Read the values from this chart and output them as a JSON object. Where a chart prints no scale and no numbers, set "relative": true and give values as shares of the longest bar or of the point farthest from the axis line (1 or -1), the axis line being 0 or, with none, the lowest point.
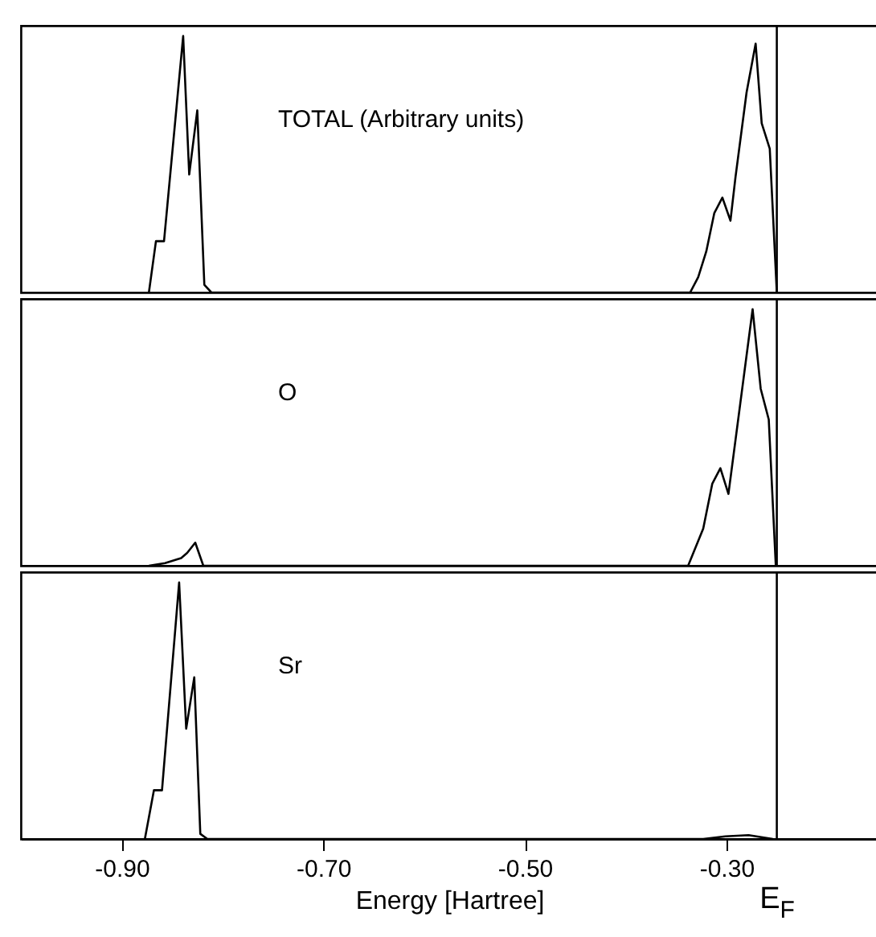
{
  "chart_data": [
    {
      "type": "line",
      "relative": true,
      "annotations": [
        "TOTAL (Arbitrary units)"
      ],
      "tick_labels": false,
      "x": [
        -0.873,
        -0.866,
        -0.858,
        -0.839,
        -0.833,
        -0.825,
        -0.818,
        -0.811,
        -0.336,
        -0.328,
        -0.32,
        -0.312,
        -0.304,
        -0.296,
        -0.291,
        -0.28,
        -0.271,
        -0.265,
        -0.257,
        -0.25
      ],
      "series": [
        {
          "color": "#000000",
          "values": [
            0,
            0.2,
            0.2,
            1.0,
            0.46,
            0.71,
            0.03,
            0,
            0,
            0.06,
            0.16,
            0.31,
            0.37,
            0.28,
            0.45,
            0.78,
            0.97,
            0.66,
            0.56,
            0
          ]
        }
      ],
      "xlim": [
        -1.0,
        -0.15
      ],
      "ref_lines": [
        {
          "axis": "x",
          "value": -0.25,
          "color": "#000000"
        }
      ]
    },
    {
      "type": "line",
      "relative": true,
      "annotations": [
        "O"
      ],
      "tick_labels": false,
      "x": [
        -0.873,
        -0.857,
        -0.841,
        -0.835,
        -0.827,
        -0.819,
        -0.338,
        -0.323,
        -0.314,
        -0.306,
        -0.298,
        -0.274,
        -0.266,
        -0.258,
        -0.251
      ],
      "series": [
        {
          "color": "#000000",
          "values": [
            0,
            0.01,
            0.03,
            0.05,
            0.09,
            0,
            0,
            0.145,
            0.32,
            0.38,
            0.28,
            1.0,
            0.69,
            0.57,
            0
          ]
        }
      ],
      "xlim": [
        -1.0,
        -0.15
      ],
      "ref_lines": [
        {
          "axis": "x",
          "value": -0.25,
          "color": "#000000"
        }
      ]
    },
    {
      "type": "line",
      "relative": true,
      "annotations": [
        "Sr"
      ],
      "tick_labels": "x",
      "xlabel": "Energy [Hartree]",
      "x": [
        -0.877,
        -0.868,
        -0.86,
        -0.843,
        -0.836,
        -0.828,
        -0.822,
        -0.815,
        -0.323,
        -0.301,
        -0.278,
        -0.254
      ],
      "series": [
        {
          "color": "#000000",
          "values": [
            0,
            0.19,
            0.19,
            1.0,
            0.43,
            0.63,
            0.02,
            0,
            0,
            0.01,
            0.015,
            0
          ]
        }
      ],
      "xlim": [
        -1.0,
        -0.15
      ],
      "xticks": [
        {
          "value": -0.9,
          "label": "-0.90"
        },
        {
          "value": -0.7,
          "label": "-0.70"
        },
        {
          "value": -0.5,
          "label": "-0.50"
        },
        {
          "value": -0.3,
          "label": "-0.30"
        }
      ],
      "ref_lines": [
        {
          "axis": "x",
          "value": -0.25,
          "label": "E$_{F}$",
          "color": "#000000"
        }
      ]
    }
  ]
}
